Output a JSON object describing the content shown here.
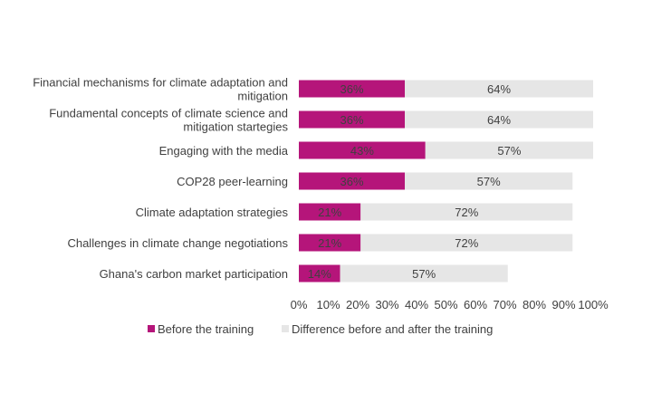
{
  "chart_data": {
    "type": "bar",
    "orientation": "horizontal",
    "stacked": true,
    "categories": [
      "Financial mechanisms for climate adaptation and mitigation",
      "Fundamental concepts of climate science and mitigation startegies",
      "Engaging with the media",
      "COP28 peer-learning",
      "Climate adaptation strategies",
      "Challenges in climate change negotiations",
      "Ghana's carbon market participation"
    ],
    "category_lines": [
      [
        "Financial mechanisms for climate adaptation and",
        "mitigation"
      ],
      [
        "Fundamental concepts of climate science and",
        "mitigation startegies"
      ],
      [
        "Engaging with the media"
      ],
      [
        "COP28 peer-learning"
      ],
      [
        "Climate adaptation strategies"
      ],
      [
        "Challenges in climate change negotiations"
      ],
      [
        "Ghana's carbon market participation"
      ]
    ],
    "series": [
      {
        "name": "Before the training",
        "color": "#b5157a",
        "values": [
          36,
          36,
          43,
          36,
          21,
          21,
          14
        ],
        "labels": [
          "36%",
          "36%",
          "43%",
          "36%",
          "21%",
          "21%",
          "14%"
        ]
      },
      {
        "name": "Difference before and after the training",
        "color": "#e6e6e6",
        "values": [
          64,
          64,
          57,
          57,
          72,
          72,
          57
        ],
        "labels": [
          "64%",
          "64%",
          "57%",
          "57%",
          "72%",
          "72%",
          "57%"
        ]
      }
    ],
    "xlim": [
      0,
      100
    ],
    "x_ticks": [
      0,
      10,
      20,
      30,
      40,
      50,
      60,
      70,
      80,
      90,
      100
    ],
    "x_tick_labels": [
      "0%",
      "10%",
      "20%",
      "30%",
      "40%",
      "50%",
      "60%",
      "70%",
      "80%",
      "90%",
      "100%"
    ],
    "grid": false,
    "legend_position": "bottom"
  }
}
